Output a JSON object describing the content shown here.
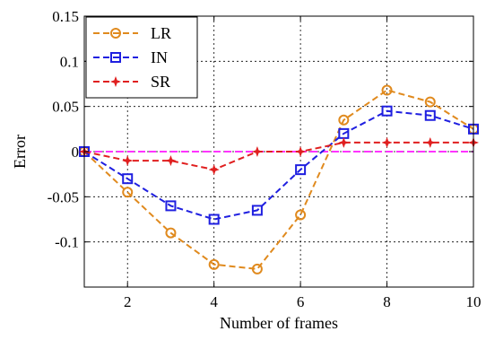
{
  "chart_data": {
    "type": "line",
    "xlabel": "Number of frames",
    "ylabel": "Error",
    "xlim": [
      1,
      10
    ],
    "ylim": [
      -0.15,
      0.15
    ],
    "xticks": [
      2,
      4,
      6,
      8,
      10
    ],
    "xtick_labels": [
      "2",
      "4",
      "6",
      "8",
      "10"
    ],
    "yticks": [
      -0.1,
      -0.05,
      0,
      0.05,
      0.1,
      0.15
    ],
    "ytick_labels": [
      "-0.1",
      "-0.05",
      "0",
      "0.05",
      "0.1",
      "0.15"
    ],
    "grid": true,
    "legend_position": "top-left",
    "x": [
      1,
      2,
      3,
      4,
      5,
      6,
      7,
      8,
      9,
      10
    ],
    "series": [
      {
        "name": "LR",
        "color": "#E08A1E",
        "marker": "circle",
        "values": [
          0,
          -0.045,
          -0.09,
          -0.125,
          -0.13,
          -0.07,
          0.035,
          0.068,
          0.055,
          0.025
        ]
      },
      {
        "name": "IN",
        "color": "#1F1FE0",
        "marker": "square",
        "values": [
          0,
          -0.03,
          -0.06,
          -0.075,
          -0.065,
          -0.02,
          0.02,
          0.045,
          0.04,
          0.025
        ]
      },
      {
        "name": "SR",
        "color": "#E01F1F",
        "marker": "star",
        "values": [
          0,
          -0.01,
          -0.01,
          -0.02,
          0,
          0,
          0.01,
          0.01,
          0.01,
          0.01
        ]
      }
    ],
    "reference_line": {
      "y": 0,
      "color": "#FF33FF"
    }
  }
}
